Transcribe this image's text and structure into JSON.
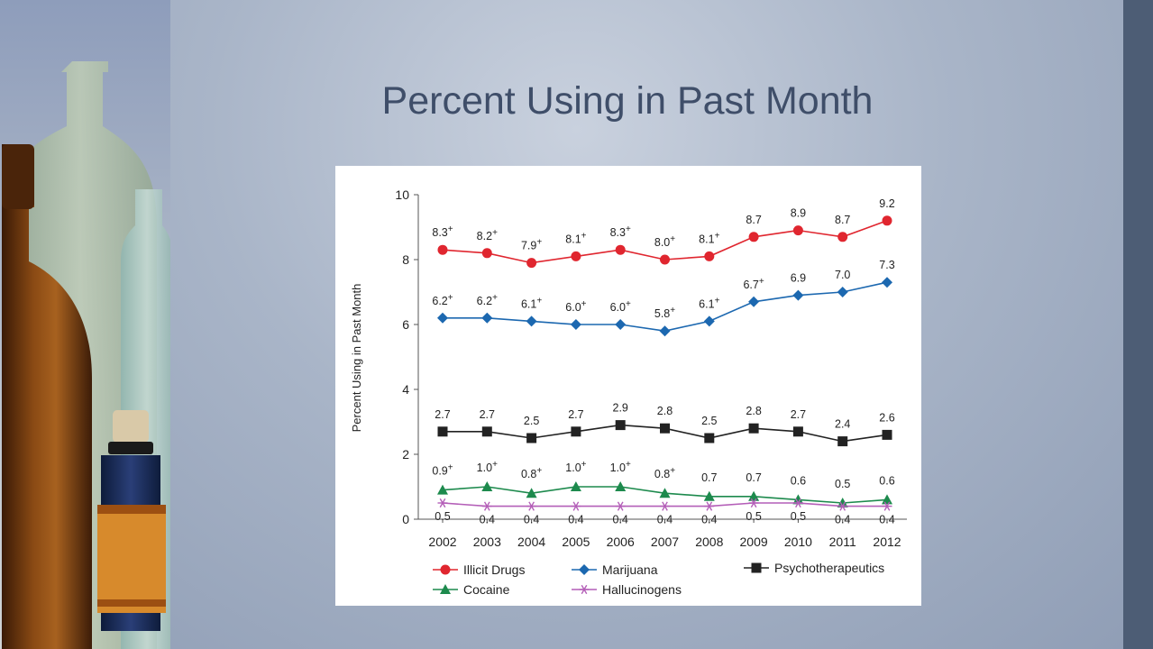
{
  "slide": {
    "title": "Percent Using in Past Month"
  },
  "colors": {
    "illicit": "#e0262f",
    "marijuana": "#1c68b0",
    "psycho": "#222222",
    "cocaine": "#1d8a4d",
    "halluc": "#b45fb8",
    "right_bar": "#4d5d75",
    "title_text": "#3f4e69"
  },
  "chart_data": {
    "type": "line",
    "ylabel": "Percent Using in Past Month",
    "ylim": [
      0,
      10
    ],
    "yticks": [
      "0",
      "2",
      "4",
      "6",
      "8",
      "10"
    ],
    "x": [
      "2002",
      "2003",
      "2004",
      "2005",
      "2006",
      "2007",
      "2008",
      "2009",
      "2010",
      "2011",
      "2012"
    ],
    "legend_position": "bottom",
    "series": [
      {
        "name": "Illicit Drugs",
        "color": "#e0262f",
        "marker": "circle",
        "values": [
          8.3,
          8.2,
          7.9,
          8.1,
          8.3,
          8.0,
          8.1,
          8.7,
          8.9,
          8.7,
          9.2
        ],
        "labels": [
          "8.3",
          "8.2",
          "7.9",
          "8.1",
          "8.3",
          "8.0",
          "8.1",
          "8.7",
          "8.9",
          "8.7",
          "9.2"
        ],
        "flags": [
          true,
          true,
          true,
          true,
          true,
          true,
          true,
          false,
          false,
          false,
          false
        ]
      },
      {
        "name": "Marijuana",
        "color": "#1c68b0",
        "marker": "diamond",
        "values": [
          6.2,
          6.2,
          6.1,
          6.0,
          6.0,
          5.8,
          6.1,
          6.7,
          6.9,
          7.0,
          7.3
        ],
        "labels": [
          "6.2",
          "6.2",
          "6.1",
          "6.0",
          "6.0",
          "5.8",
          "6.1",
          "6.7",
          "6.9",
          "7.0",
          "7.3"
        ],
        "flags": [
          true,
          true,
          true,
          true,
          true,
          true,
          true,
          true,
          false,
          false,
          false
        ]
      },
      {
        "name": "Psychotherapeutics",
        "color": "#222222",
        "marker": "square",
        "values": [
          2.7,
          2.7,
          2.5,
          2.7,
          2.9,
          2.8,
          2.5,
          2.8,
          2.7,
          2.4,
          2.6
        ],
        "labels": [
          "2.7",
          "2.7",
          "2.5",
          "2.7",
          "2.9",
          "2.8",
          "2.5",
          "2.8",
          "2.7",
          "2.4",
          "2.6"
        ],
        "flags": [
          false,
          false,
          false,
          false,
          false,
          false,
          false,
          false,
          false,
          false,
          false
        ]
      },
      {
        "name": "Cocaine",
        "color": "#1d8a4d",
        "marker": "triangle",
        "values": [
          0.9,
          1.0,
          0.8,
          1.0,
          1.0,
          0.8,
          0.7,
          0.7,
          0.6,
          0.5,
          0.6
        ],
        "labels": [
          "0.9",
          "1.0",
          "0.8",
          "1.0",
          "1.0",
          "0.8",
          "0.7",
          "0.7",
          "0.6",
          "0.5",
          "0.6"
        ],
        "flags": [
          true,
          true,
          true,
          true,
          true,
          true,
          false,
          false,
          false,
          false,
          false
        ]
      },
      {
        "name": "Hallucinogens",
        "color": "#b45fb8",
        "marker": "asterisk",
        "values": [
          0.5,
          0.4,
          0.4,
          0.4,
          0.4,
          0.4,
          0.4,
          0.5,
          0.5,
          0.4,
          0.4
        ],
        "labels": [
          "0.5",
          "0.4",
          "0.4",
          "0.4",
          "0.4",
          "0.4",
          "0.4",
          "0.5",
          "0.5",
          "0.4",
          "0.4"
        ],
        "flags": [
          false,
          false,
          false,
          false,
          false,
          false,
          false,
          false,
          false,
          false,
          false
        ]
      }
    ]
  }
}
